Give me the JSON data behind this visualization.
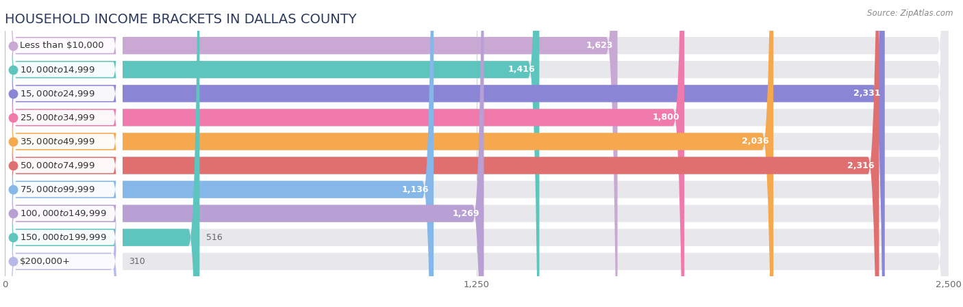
{
  "title": "HOUSEHOLD INCOME BRACKETS IN DALLAS COUNTY",
  "source": "Source: ZipAtlas.com",
  "categories": [
    "Less than $10,000",
    "$10,000 to $14,999",
    "$15,000 to $24,999",
    "$25,000 to $34,999",
    "$35,000 to $49,999",
    "$50,000 to $74,999",
    "$75,000 to $99,999",
    "$100,000 to $149,999",
    "$150,000 to $199,999",
    "$200,000+"
  ],
  "values": [
    1623,
    1416,
    2331,
    1800,
    2036,
    2316,
    1136,
    1269,
    516,
    310
  ],
  "bar_colors": [
    "#c9a8d4",
    "#5ec4be",
    "#8a85d4",
    "#f07aac",
    "#f5a84e",
    "#e07070",
    "#85b8e8",
    "#b89fd4",
    "#5ec4be",
    "#b8b8e8"
  ],
  "bar_bg_color": "#e8e8ec",
  "xlim": [
    0,
    2500
  ],
  "xticks": [
    0,
    1250,
    2500
  ],
  "background_color": "#ffffff",
  "title_fontsize": 14,
  "label_fontsize": 9.5,
  "value_fontsize": 9,
  "bar_height": 0.72,
  "label_text_color": "#333333",
  "value_inside_color": "#ffffff",
  "value_outside_color": "#666666",
  "grid_color": "#d0d0d8",
  "title_color": "#2b3a5c"
}
